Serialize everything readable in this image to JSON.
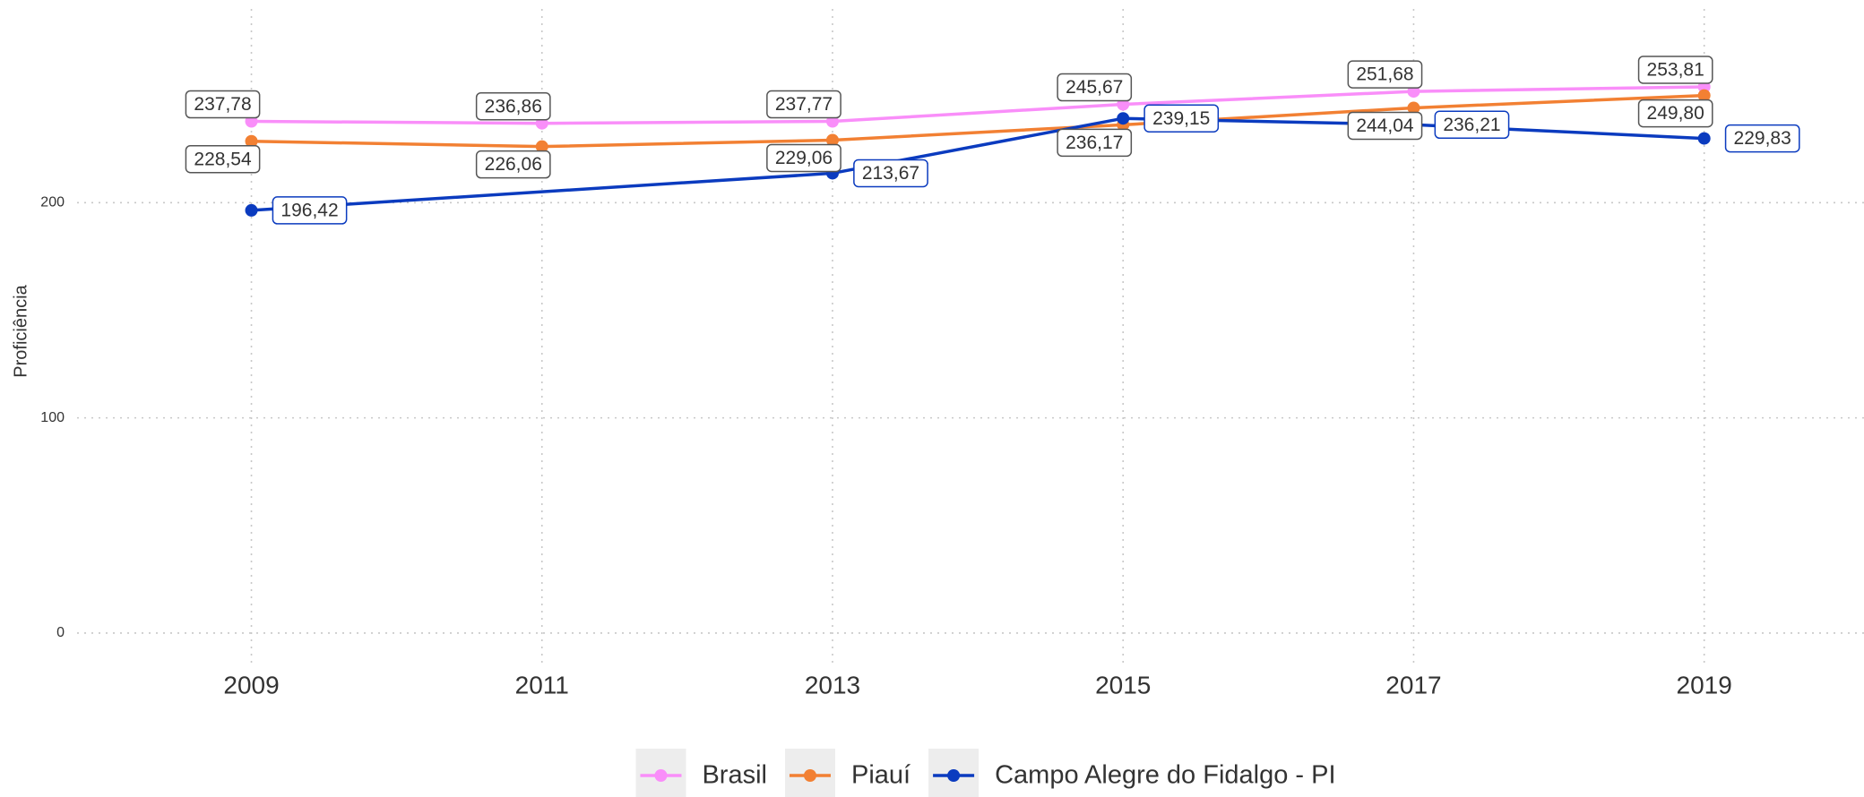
{
  "chart_data": {
    "type": "line",
    "y_label": "Proficiência",
    "xlim": [
      2007.8,
      2020.1
    ],
    "xticks": [
      2009,
      2011,
      2013,
      2015,
      2017,
      2019
    ],
    "ylim": [
      -15,
      290
    ],
    "yticks": [
      0,
      100,
      200
    ],
    "grid": true,
    "legend": "bottom",
    "series": [
      {
        "name": "Brasil",
        "color": "#f98ef9",
        "label_color": "#444444",
        "x": [
          2009,
          2011,
          2013,
          2015,
          2017,
          2019
        ],
        "values": [
          237.78,
          236.86,
          237.77,
          245.67,
          251.68,
          253.81
        ],
        "value_labels": [
          "237,78",
          "236,86",
          "237,77",
          "245,67",
          "251,68",
          "253,81"
        ]
      },
      {
        "name": "Piauí",
        "color": "#f28033",
        "label_color": "#444444",
        "x": [
          2009,
          2011,
          2013,
          2015,
          2017,
          2019
        ],
        "values": [
          228.54,
          226.06,
          229.06,
          236.17,
          244.04,
          249.8
        ],
        "value_labels": [
          "228,54",
          "226,06",
          "229,06",
          "236,17",
          "244,04",
          "249,80"
        ]
      },
      {
        "name": "Campo Alegre do Fidalgo - PI",
        "color": "#0b3bbf",
        "label_color": "#0b3bbf",
        "x": [
          2009,
          2013,
          2015,
          2017,
          2019
        ],
        "values": [
          196.42,
          213.67,
          239.15,
          236.21,
          229.83
        ],
        "value_labels": [
          "196,42",
          "213,67",
          "239,15",
          "236,21",
          "229,83"
        ]
      }
    ]
  }
}
